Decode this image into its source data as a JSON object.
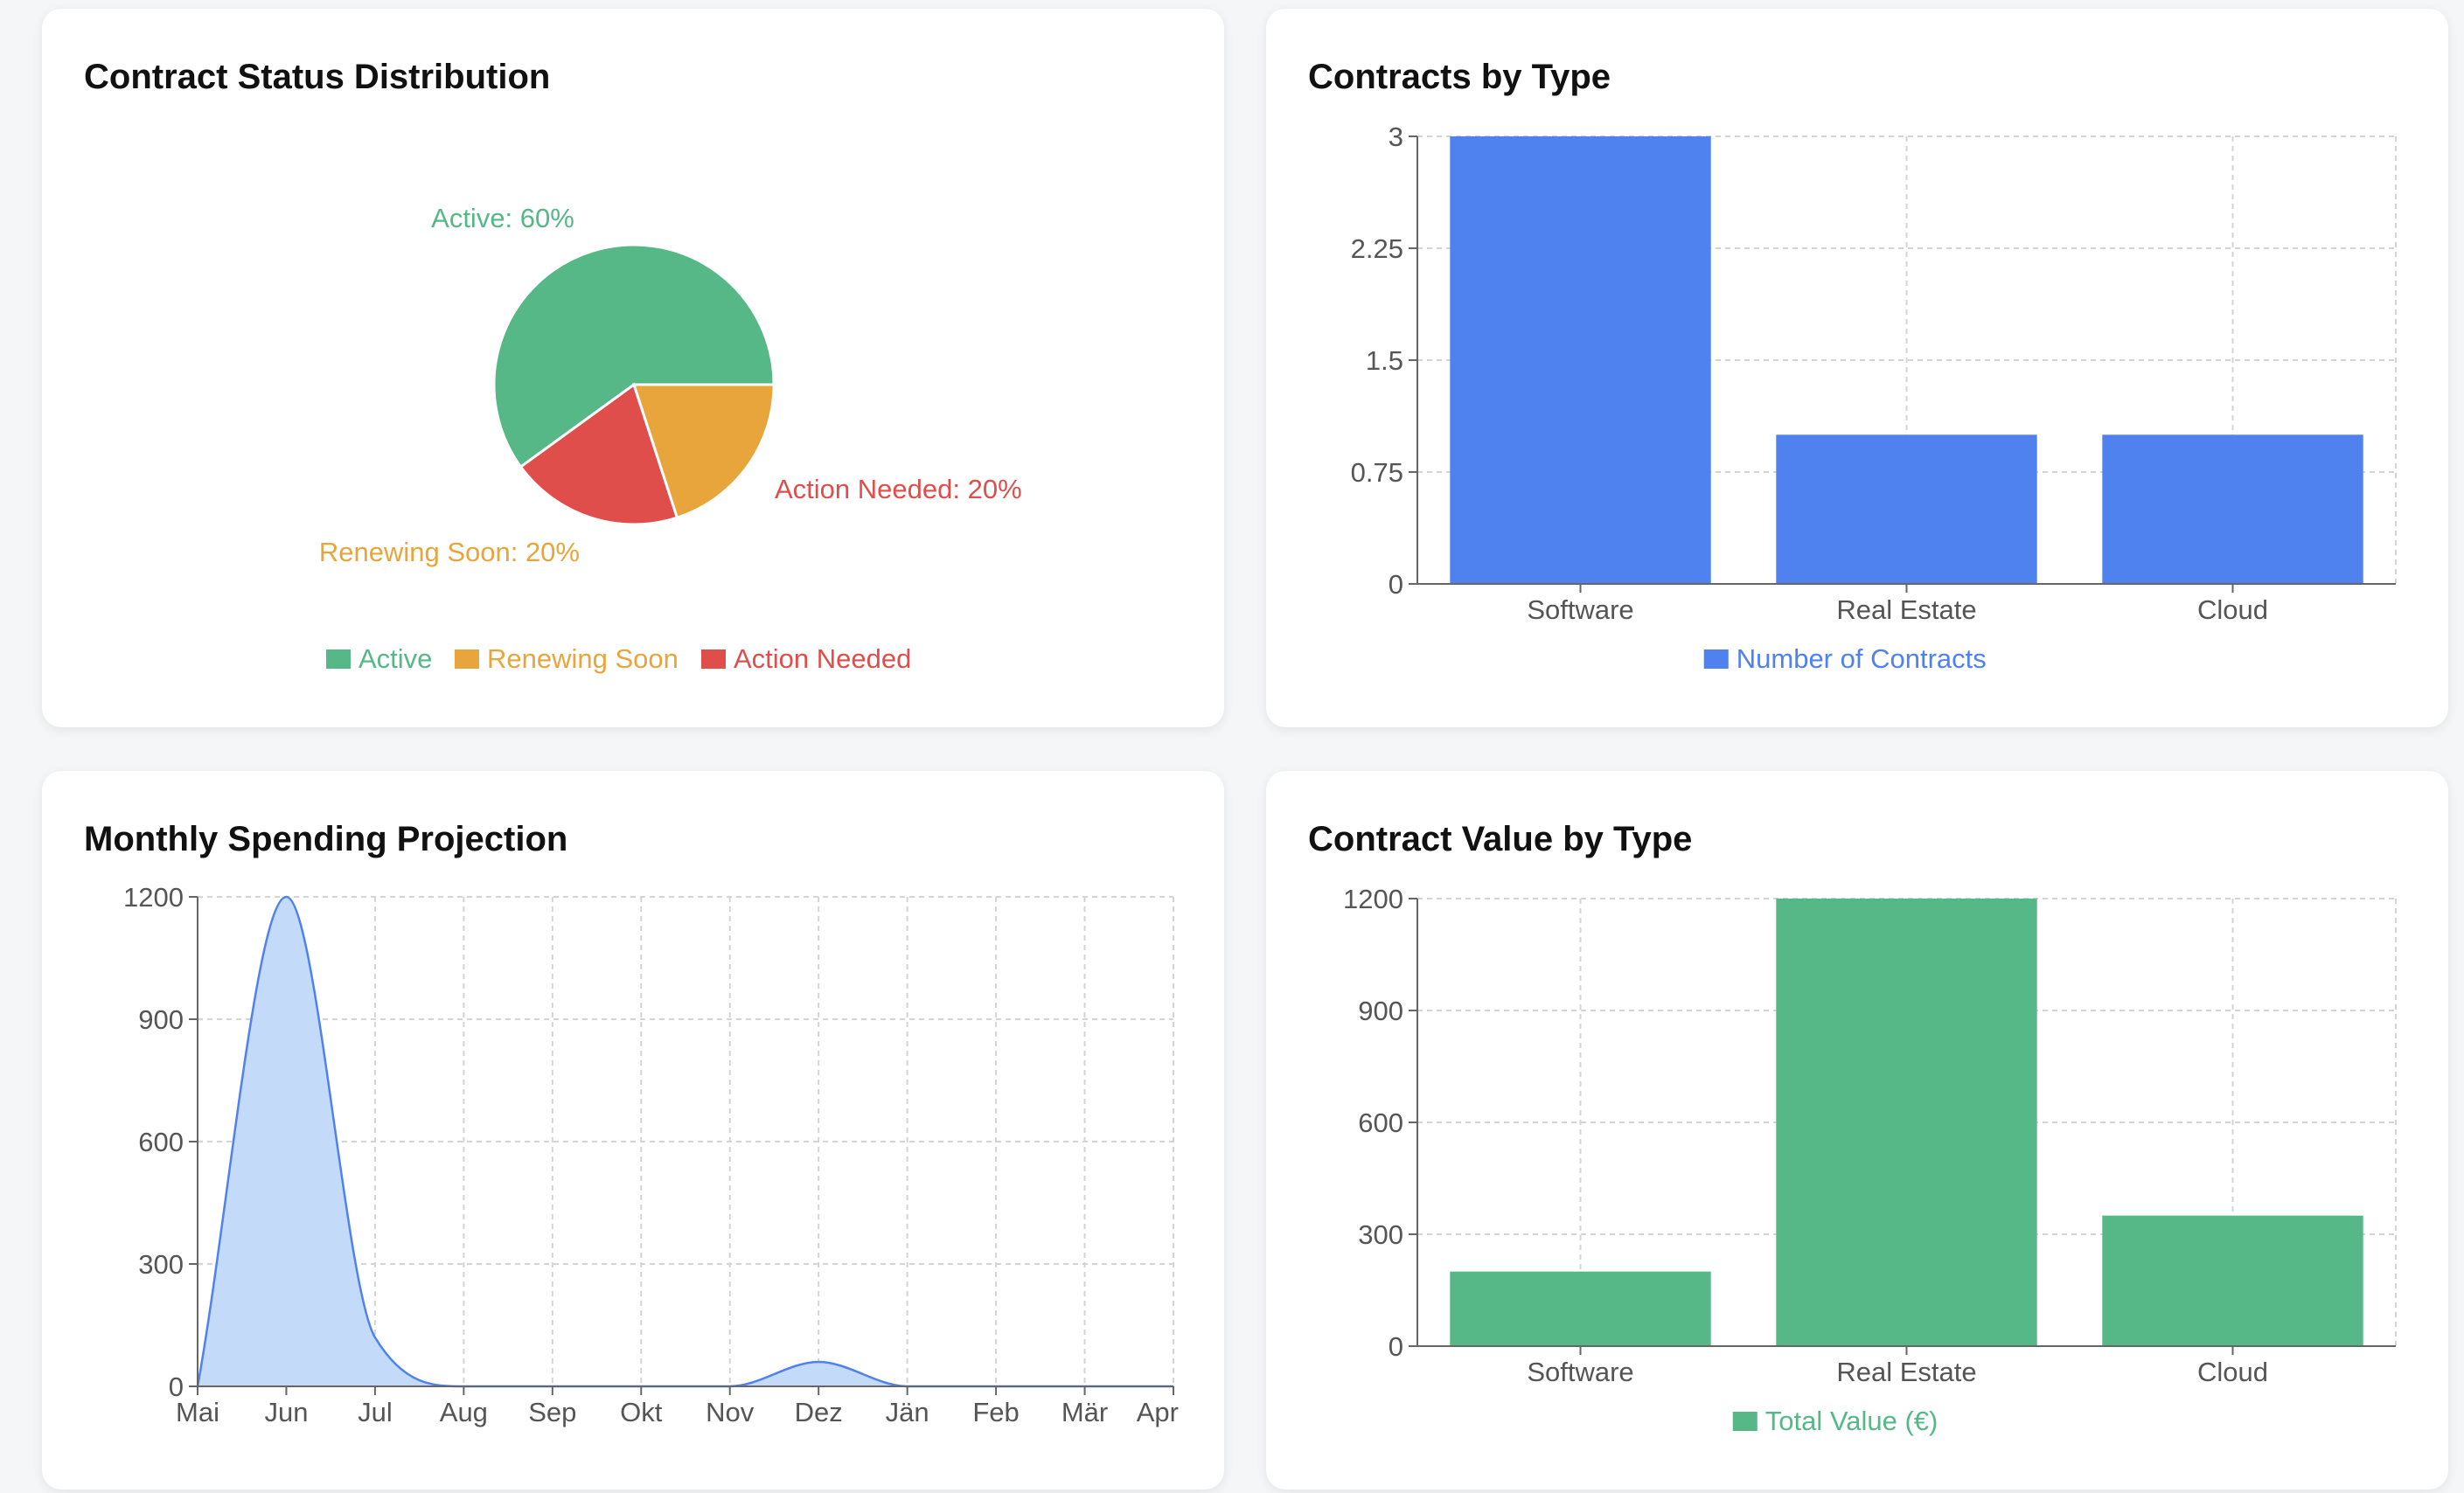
{
  "colors": {
    "green": "#55b886",
    "orange": "#e8a53c",
    "red": "#df4e4b",
    "blue": "#4f82ee",
    "area_fill": "#c3daf8",
    "area_line": "#4f82ee",
    "grid": "#d4d4d4",
    "axis": "#666666"
  },
  "cards": {
    "status": {
      "title": "Contract Status Distribution"
    },
    "types": {
      "title": "Contracts by Type"
    },
    "spending": {
      "title": "Monthly Spending Projection"
    },
    "value": {
      "title": "Contract Value by Type"
    }
  },
  "chart_data": [
    {
      "type": "pie",
      "title": "Contract Status Distribution",
      "slices": [
        {
          "name": "Active",
          "value": 60,
          "label": "Active: 60%",
          "color": "#55b886"
        },
        {
          "name": "Action Needed",
          "value": 20,
          "label": "Action Needed: 20%",
          "color": "#df4e4b"
        },
        {
          "name": "Renewing Soon",
          "value": 20,
          "label": "Renewing Soon: 20%",
          "color": "#e8a53c"
        }
      ],
      "legend": [
        "Active",
        "Renewing Soon",
        "Action Needed"
      ],
      "legend_placement": "bottom"
    },
    {
      "type": "bar",
      "title": "Contracts by Type",
      "categories": [
        "Software",
        "Real Estate",
        "Cloud"
      ],
      "series": [
        {
          "name": "Number of Contracts",
          "values": [
            3,
            1,
            1
          ],
          "color": "#4f82ee"
        }
      ],
      "ylim": [
        0,
        3
      ],
      "yticks": [
        "0",
        "0.75",
        "1.5",
        "2.25",
        "3"
      ],
      "grid": true,
      "legend_placement": "bottom"
    },
    {
      "type": "area",
      "title": "Monthly Spending Projection",
      "categories": [
        "Mai",
        "Jun",
        "Jul",
        "Aug",
        "Sep",
        "Okt",
        "Nov",
        "Dez",
        "Jän",
        "Feb",
        "Mär",
        "Apr"
      ],
      "values": [
        0,
        1200,
        120,
        0,
        0,
        0,
        0,
        60,
        0,
        0,
        0,
        0
      ],
      "ylim": [
        0,
        1200
      ],
      "yticks": [
        "0",
        "300",
        "600",
        "900",
        "1200"
      ],
      "grid": true
    },
    {
      "type": "bar",
      "title": "Contract Value by Type",
      "categories": [
        "Software",
        "Real Estate",
        "Cloud"
      ],
      "series": [
        {
          "name": "Total Value (€)",
          "values": [
            200,
            1200,
            350
          ],
          "color": "#55b886"
        }
      ],
      "ylim": [
        0,
        1200
      ],
      "yticks": [
        "0",
        "300",
        "600",
        "900",
        "1200"
      ],
      "grid": true,
      "legend_placement": "bottom"
    }
  ]
}
